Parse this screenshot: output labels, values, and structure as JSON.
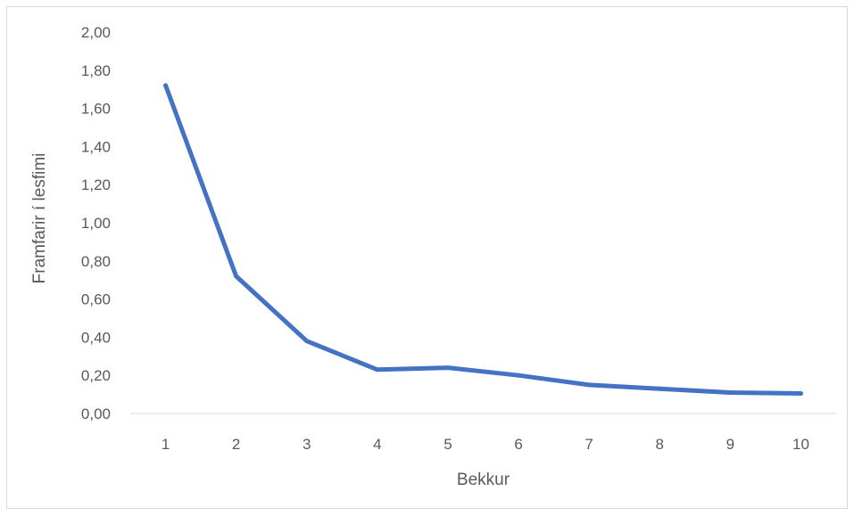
{
  "chart_data": {
    "type": "line",
    "title": "",
    "xlabel": "Bekkur",
    "ylabel": "Framfarir í lesfimi",
    "categories": [
      "1",
      "2",
      "3",
      "4",
      "5",
      "6",
      "7",
      "8",
      "9",
      "10"
    ],
    "series": [
      {
        "values": [
          1.72,
          0.72,
          0.38,
          0.23,
          0.24,
          0.2,
          0.15,
          0.13,
          0.11,
          0.105
        ],
        "color": "#4472c4"
      }
    ],
    "ylim": [
      0,
      2
    ],
    "yticks": [
      "0,00",
      "0,20",
      "0,40",
      "0,60",
      "0,80",
      "1,00",
      "1,20",
      "1,40",
      "1,60",
      "1,80",
      "2,00"
    ],
    "grid": false,
    "legend": "none"
  }
}
